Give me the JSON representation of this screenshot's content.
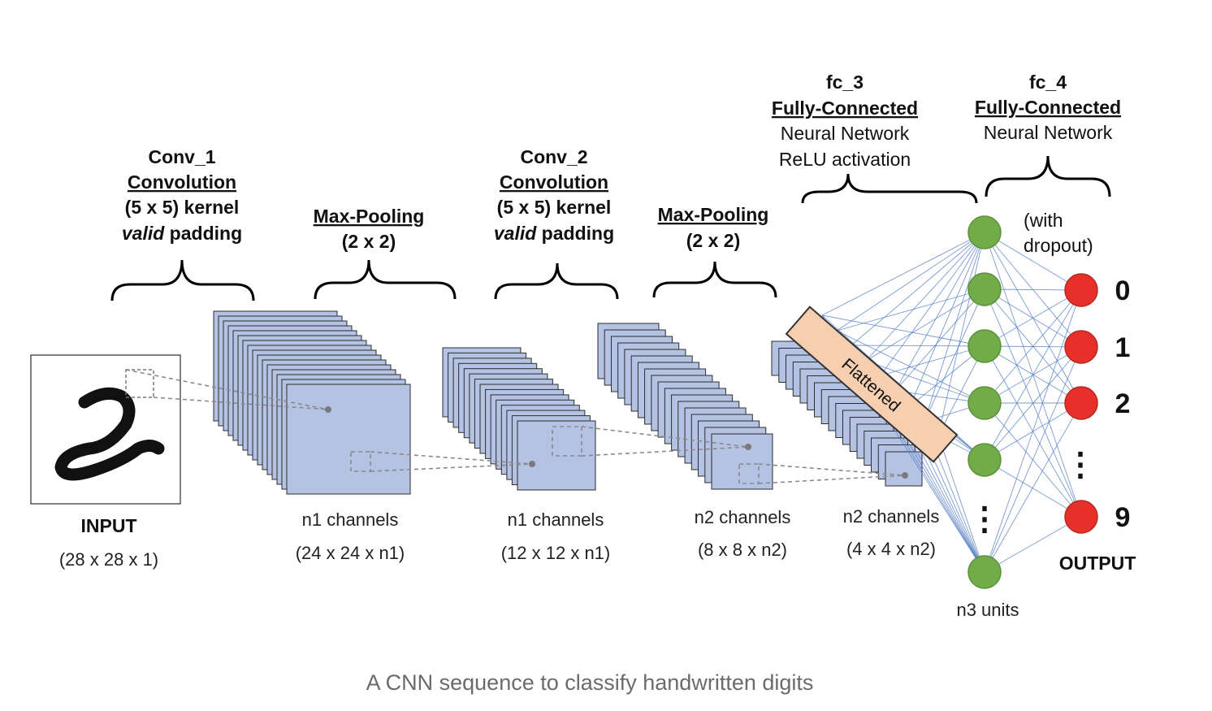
{
  "caption": "A CNN sequence to classify handwritten digits",
  "input": {
    "label": "INPUT",
    "dims": "(28 x 28 x 1)"
  },
  "conv1": {
    "name": "Conv_1",
    "type": "Convolution",
    "kernel": "(5 x 5) kernel",
    "padding_word": "valid",
    "padding_rest": " padding",
    "channels": "n1 channels",
    "dims": "(24 x 24 x n1)"
  },
  "pool1": {
    "type": "Max-Pooling",
    "size": "(2 x 2)",
    "channels": "n1 channels",
    "dims": "(12 x 12 x n1)"
  },
  "conv2": {
    "name": "Conv_2",
    "type": "Convolution",
    "kernel": "(5 x 5) kernel",
    "padding_word": "valid",
    "padding_rest": " padding",
    "channels": "n2 channels",
    "dims": "(8 x 8 x n2)"
  },
  "pool2": {
    "type": "Max-Pooling",
    "size": "(2 x 2)",
    "channels": "n2 channels",
    "dims": "(4 x 4 x n2)"
  },
  "flatten": {
    "label": "Flattened"
  },
  "fc3": {
    "name": "fc_3",
    "type": "Fully-Connected",
    "line1": "Neural Network",
    "line2": "ReLU activation",
    "units": "n3 units"
  },
  "fc4": {
    "name": "fc_4",
    "type": "Fully-Connected",
    "line1": "Neural Network",
    "dropout1": "(with",
    "dropout2": "dropout)"
  },
  "output": {
    "label": "OUTPUT",
    "digits": [
      "0",
      "1",
      "2",
      "9"
    ],
    "ellipsis": "⋮"
  },
  "colors": {
    "feature_map": "#b4c3e3",
    "hidden_node": "#71ac48",
    "output_node": "#e8302a",
    "flatten_bar": "#f5cfb0",
    "connection": "#4e79c4"
  }
}
